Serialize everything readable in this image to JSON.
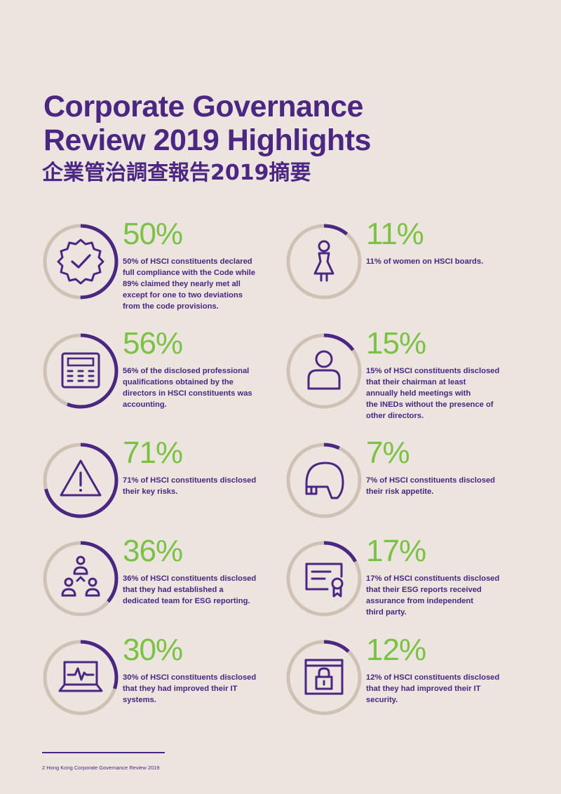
{
  "header": {
    "title_line1": "Corporate Governance",
    "title_line2": "Review 2019 Highlights",
    "subtitle": "企業管治調查報告2019摘要"
  },
  "colors": {
    "purple": "#4b2682",
    "green": "#7cc242",
    "ring_track": "#cfc2b4",
    "background": "#ece5df"
  },
  "stats": [
    {
      "value": "50%",
      "fraction": 0.5,
      "icon": "checkmark-badge-icon",
      "text": "50% of HSCI constituents declared\nfull compliance with the Code while\n89% claimed they nearly met all\nexcept for one to two deviations\nfrom the code provisions."
    },
    {
      "value": "11%",
      "fraction": 0.11,
      "icon": "woman-icon",
      "text": "11% of women on HSCI boards."
    },
    {
      "value": "56%",
      "fraction": 0.56,
      "icon": "calculator-icon",
      "text": "56% of the disclosed professional\nqualifications obtained by the\ndirectors in HSCI constituents was\naccounting."
    },
    {
      "value": "15%",
      "fraction": 0.15,
      "icon": "person-icon",
      "text": "15% of HSCI constituents disclosed\nthat their chairman at least\nannually held meetings with\nthe INEDs without the presence of\nother directors."
    },
    {
      "value": "71%",
      "fraction": 0.71,
      "icon": "warning-icon",
      "text": "71% of HSCI constituents disclosed\ntheir key risks."
    },
    {
      "value": "7%",
      "fraction": 0.07,
      "icon": "helmet-icon",
      "text": "7% of HSCI constituents disclosed\ntheir risk appetite."
    },
    {
      "value": "36%",
      "fraction": 0.36,
      "icon": "team-icon",
      "text": "36% of HSCI constituents disclosed\nthat they had established a\ndedicated team for ESG reporting."
    },
    {
      "value": "17%",
      "fraction": 0.17,
      "icon": "certificate-icon",
      "text": "17% of HSCI constituents disclosed\nthat their ESG reports received\nassurance from independent\nthird party."
    },
    {
      "value": "30%",
      "fraction": 0.3,
      "icon": "laptop-icon",
      "text": "30% of HSCI constituents disclosed\nthat they had improved their IT\nsystems."
    },
    {
      "value": "12%",
      "fraction": 0.12,
      "icon": "security-lock-icon",
      "text": "12% of HSCI constituents disclosed\nthat they had improved their IT\nsecurity."
    }
  ],
  "footer": {
    "text": "2  Hong Kong Corporate Governance Review 2019"
  }
}
